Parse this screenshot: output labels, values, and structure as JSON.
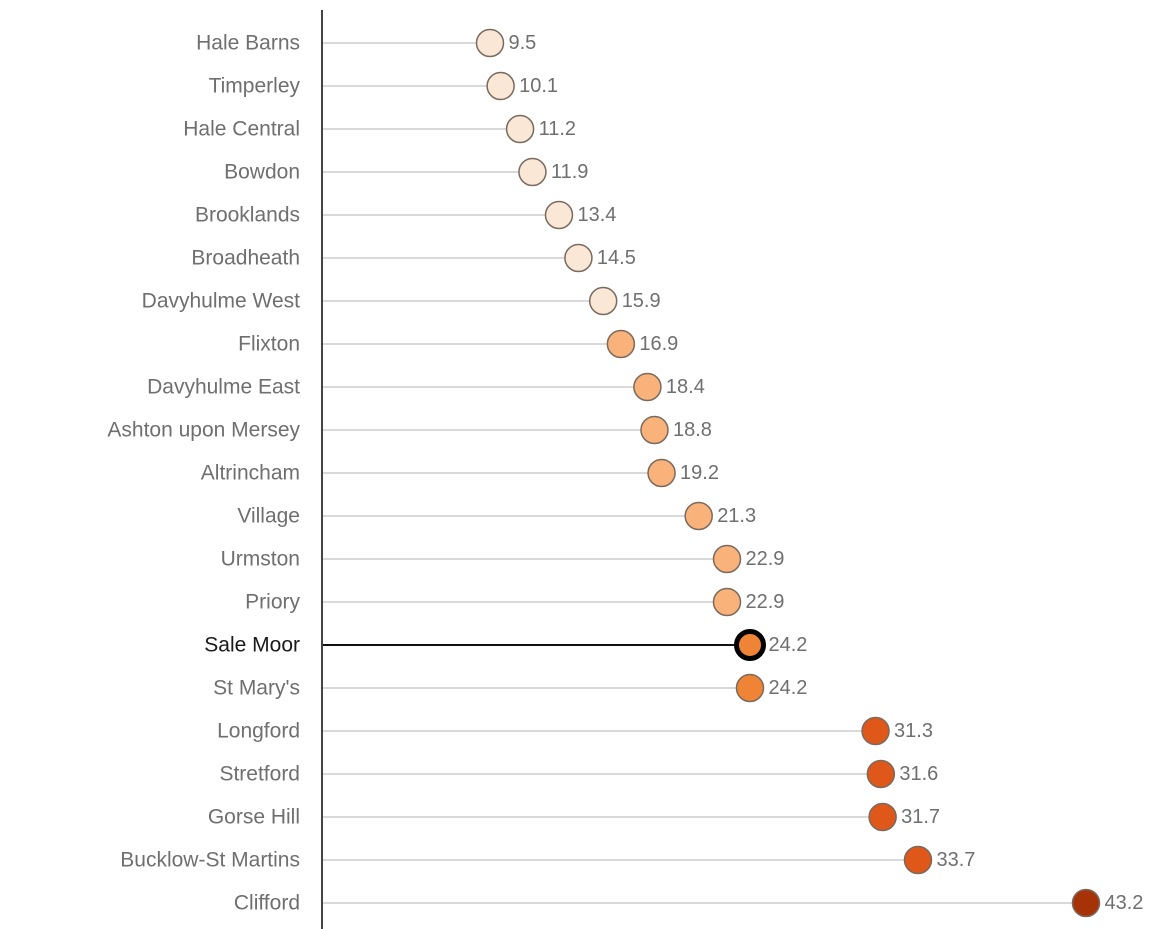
{
  "chart_data": {
    "type": "lollipop",
    "orientation": "horizontal",
    "highlighted_category": "Sale Moor",
    "xlim": [
      0,
      43.2
    ],
    "grid": false,
    "legend": "none",
    "categories": [
      "Hale Barns",
      "Timperley",
      "Hale Central",
      "Bowdon",
      "Brooklands",
      "Broadheath",
      "Davyhulme West",
      "Flixton",
      "Davyhulme East",
      "Ashton upon Mersey",
      "Altrincham",
      "Village",
      "Urmston",
      "Priory",
      "Sale Moor",
      "St Mary's",
      "Longford",
      "Stretford",
      "Gorse Hill",
      "Bucklow-St Martins",
      "Clifford"
    ],
    "values": [
      9.5,
      10.1,
      11.2,
      11.9,
      13.4,
      14.5,
      15.9,
      16.9,
      18.4,
      18.8,
      19.2,
      21.3,
      22.9,
      22.9,
      24.2,
      24.2,
      31.3,
      31.6,
      31.7,
      33.7,
      43.2
    ],
    "value_labels": [
      "9.5",
      "10.1",
      "11.2",
      "11.9",
      "13.4",
      "14.5",
      "15.9",
      "16.9",
      "18.4",
      "18.8",
      "19.2",
      "21.3",
      "22.9",
      "22.9",
      "24.2",
      "24.2",
      "31.3",
      "31.6",
      "31.7",
      "33.7",
      "43.2"
    ],
    "point_colors": [
      "#fbe7d6",
      "#fbe7d6",
      "#fbe7d6",
      "#fbe7d6",
      "#fbe7d6",
      "#fbe7d6",
      "#fbe7d6",
      "#f9b27a",
      "#f9b27a",
      "#f9b27a",
      "#f9b27a",
      "#f9b27a",
      "#f9b27a",
      "#f9b27a",
      "#f08436",
      "#f08436",
      "#e0571a",
      "#e0571a",
      "#e0571a",
      "#e0571a",
      "#a83208"
    ]
  }
}
